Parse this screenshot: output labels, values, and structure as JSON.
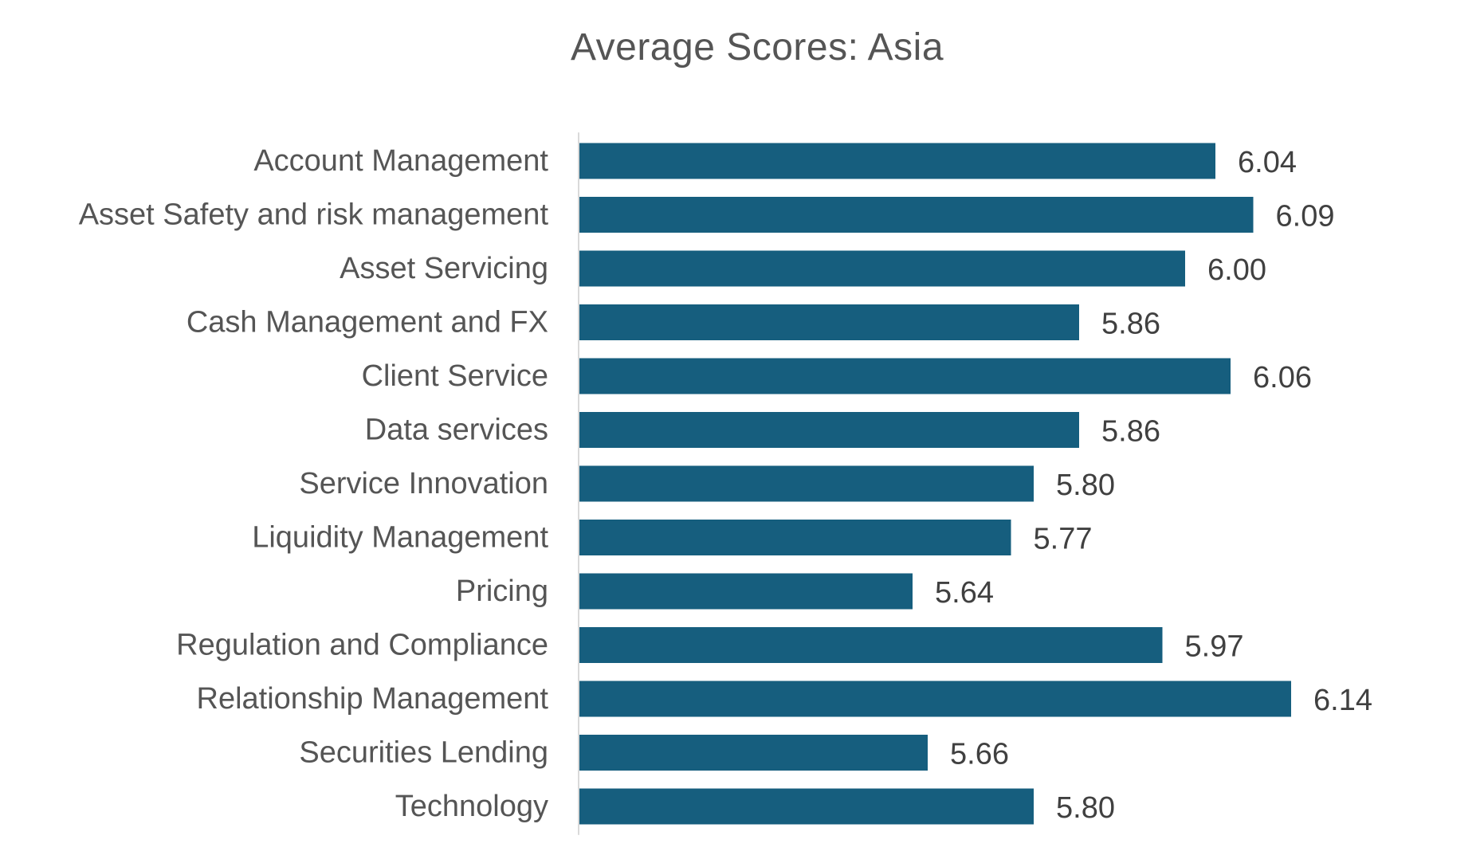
{
  "chart_data": {
    "type": "bar",
    "orientation": "horizontal",
    "title": "Average Scores: Asia",
    "xlabel": "",
    "ylabel": "",
    "categories": [
      "Account Management",
      "Asset Safety and risk management",
      "Asset Servicing",
      "Cash Management and FX",
      "Client Service",
      "Data services",
      "Service Innovation",
      "Liquidity Management",
      "Pricing",
      "Regulation and Compliance",
      "Relationship Management",
      "Securities Lending",
      "Technology"
    ],
    "values": [
      6.04,
      6.09,
      6.0,
      5.86,
      6.06,
      5.86,
      5.8,
      5.77,
      5.64,
      5.97,
      6.14,
      5.66,
      5.8
    ],
    "value_labels": [
      "6.04",
      "6.09",
      "6.00",
      "5.86",
      "6.06",
      "5.86",
      "5.80",
      "5.77",
      "5.64",
      "5.97",
      "6.14",
      "5.66",
      "5.80"
    ],
    "xlim": [
      5.2,
      6.2
    ],
    "grid": false,
    "legend": "none",
    "colors": {
      "bar": "#165e7e",
      "axis": "#d9d9d9",
      "text": "#555555",
      "value_text": "#404040"
    }
  }
}
